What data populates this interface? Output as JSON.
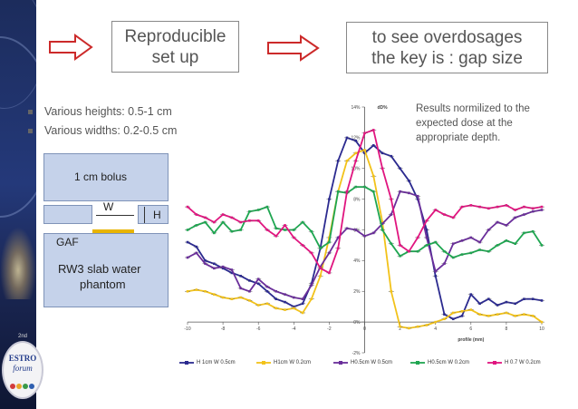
{
  "header": {
    "box1_line1": "Reproducible",
    "box1_line2": "set up",
    "box2_line1": "to see overdosages",
    "box2_line2": "the key is : gap size"
  },
  "bullets": [
    "Various heights: 0.5-1 cm",
    "Various widths: 0.2-0.5 cm"
  ],
  "note": {
    "line1": "Results normilized to the",
    "line2": "expected dose at the",
    "line3": "appropriate depth."
  },
  "setup": {
    "bolus_label": "1 cm bolus",
    "w_label": "W",
    "h_label": "H",
    "gaf_label": "GAF",
    "slab_line1": "RW3 slab water",
    "slab_line2": "phantom"
  },
  "logo": {
    "edition": "2nd",
    "line1": "ESTRO",
    "line2": "forum"
  },
  "colors": {
    "arrow": "#cc2a2a",
    "s1": "#2b2a8f",
    "s2": "#f2c21a",
    "s3": "#6a2e9a",
    "s4": "#1fa651",
    "s5": "#e0157f"
  },
  "chart_data": {
    "type": "line",
    "title": "dD%",
    "xlabel": "profile (mm)",
    "ylabel": "",
    "xlim": [
      -10,
      10
    ],
    "ylim": [
      -2,
      14
    ],
    "xticks": [
      "-10",
      "-8",
      "-6",
      "-4",
      "-2",
      "0",
      "2",
      "4",
      "6",
      "8",
      "10"
    ],
    "yticks": [
      "-2%",
      "0%",
      "2%",
      "4%",
      "6%",
      "8%",
      "10%",
      "12%",
      "14%"
    ],
    "grid": false,
    "legend_position": "bottom",
    "series": [
      {
        "name": "H 1cm   W 0.5cm",
        "color": "#2b2a8f",
        "x": [
          -10,
          -9.5,
          -9,
          -8.5,
          -8,
          -7.5,
          -7,
          -6.5,
          -6,
          -5.5,
          -5,
          -4.5,
          -4,
          -3.5,
          -3,
          -2.5,
          -2,
          -1.5,
          -1,
          -0.5,
          0,
          0.5,
          1,
          1.5,
          2,
          2.5,
          3,
          3.5,
          4,
          4.5,
          5,
          5.5,
          6,
          6.5,
          7,
          7.5,
          8,
          8.5,
          9,
          9.5,
          10
        ],
        "y": [
          5.2,
          4.9,
          4.0,
          3.8,
          3.5,
          3.2,
          3.0,
          2.7,
          2.5,
          2.0,
          1.5,
          1.3,
          1.0,
          1.2,
          2.5,
          4.8,
          8.0,
          10.5,
          12.0,
          11.8,
          11.0,
          11.5,
          11.0,
          10.8,
          10.0,
          9.2,
          8.0,
          6.0,
          3.0,
          0.5,
          0.2,
          0.4,
          1.8,
          1.2,
          1.5,
          1.1,
          1.3,
          1.2,
          1.5,
          1.5,
          1.4
        ]
      },
      {
        "name": "H1cm   W 0.2cm",
        "color": "#f2c21a",
        "x": [
          -10,
          -9.5,
          -9,
          -8.5,
          -8,
          -7.5,
          -7,
          -6.5,
          -6,
          -5.5,
          -5,
          -4.5,
          -4,
          -3.5,
          -3,
          -2.5,
          -2,
          -1.5,
          -1,
          -0.5,
          0,
          0.5,
          1,
          1.5,
          2,
          2.5,
          3,
          3.5,
          4,
          4.5,
          5,
          5.5,
          6,
          6.5,
          7,
          7.5,
          8,
          8.5,
          9,
          9.5,
          10
        ],
        "y": [
          2.0,
          2.1,
          2.0,
          1.8,
          1.6,
          1.5,
          1.6,
          1.4,
          1.1,
          1.2,
          0.9,
          0.8,
          0.9,
          0.6,
          1.5,
          3.0,
          5.5,
          8.5,
          10.5,
          11.0,
          11.2,
          9.5,
          6.5,
          2.0,
          -0.3,
          -0.4,
          -0.3,
          -0.2,
          0.0,
          0.2,
          0.6,
          0.7,
          0.8,
          0.5,
          0.4,
          0.5,
          0.6,
          0.4,
          0.5,
          0.4,
          0.0
        ]
      },
      {
        "name": "H0.5cm   W 0.5cm",
        "color": "#6a2e9a",
        "x": [
          -10,
          -9.5,
          -9,
          -8.5,
          -8,
          -7.5,
          -7,
          -6.5,
          -6,
          -5.5,
          -5,
          -4.5,
          -4,
          -3.5,
          -3,
          -2.5,
          -2,
          -1.5,
          -1,
          -0.5,
          0,
          0.5,
          1,
          1.5,
          2,
          2.5,
          3,
          3.5,
          4,
          4.5,
          5,
          5.5,
          6,
          6.5,
          7,
          7.5,
          8,
          8.5,
          9,
          9.5,
          10
        ],
        "y": [
          4.2,
          4.5,
          3.8,
          3.5,
          3.6,
          3.4,
          2.2,
          2.0,
          2.8,
          2.3,
          2.0,
          1.8,
          1.6,
          1.5,
          2.4,
          3.6,
          4.5,
          5.5,
          6.1,
          6.0,
          5.6,
          5.8,
          6.4,
          7.0,
          8.5,
          8.4,
          8.2,
          5.5,
          3.3,
          3.8,
          5.1,
          5.3,
          5.5,
          5.2,
          6.0,
          6.5,
          6.3,
          6.8,
          7.0,
          7.2,
          7.3
        ]
      },
      {
        "name": "H0.5cm   W 0.2cm",
        "color": "#1fa651",
        "x": [
          -10,
          -9.5,
          -9,
          -8.5,
          -8,
          -7.5,
          -7,
          -6.5,
          -6,
          -5.5,
          -5,
          -4.5,
          -4,
          -3.5,
          -3,
          -2.5,
          -2,
          -1.5,
          -1,
          -0.5,
          0,
          0.5,
          1,
          1.5,
          2,
          2.5,
          3,
          3.5,
          4,
          4.5,
          5,
          5.5,
          6,
          6.5,
          7,
          7.5,
          8,
          8.5,
          9,
          9.5,
          10
        ],
        "y": [
          6.0,
          6.3,
          6.5,
          5.8,
          6.5,
          5.9,
          6.0,
          7.2,
          7.3,
          7.5,
          6.1,
          6.0,
          6.0,
          6.5,
          5.9,
          4.8,
          5.2,
          8.5,
          8.4,
          8.8,
          8.8,
          8.5,
          6.0,
          5.1,
          4.3,
          4.6,
          4.6,
          5.0,
          5.2,
          4.6,
          4.2,
          4.4,
          4.5,
          4.7,
          4.6,
          5.0,
          5.3,
          5.1,
          5.8,
          5.9,
          5.0
        ]
      },
      {
        "name": "H 0.7   W 0.2cm",
        "color": "#e0157f",
        "x": [
          -10,
          -9.5,
          -9,
          -8.5,
          -8,
          -7.5,
          -7,
          -6.5,
          -6,
          -5.5,
          -5,
          -4.5,
          -4,
          -3.5,
          -3,
          -2.5,
          -2,
          -1.5,
          -1,
          -0.5,
          0,
          0.5,
          1,
          1.5,
          2,
          2.5,
          3,
          3.5,
          4,
          4.5,
          5,
          5.5,
          6,
          6.5,
          7,
          7.5,
          8,
          8.5,
          9,
          9.5,
          10
        ],
        "y": [
          7.5,
          7.0,
          6.8,
          6.5,
          7.0,
          6.8,
          6.5,
          6.6,
          6.6,
          6.0,
          5.6,
          6.3,
          5.5,
          5.0,
          4.5,
          3.5,
          3.2,
          4.8,
          8.5,
          10.5,
          12.3,
          12.5,
          10.0,
          8.0,
          5.0,
          4.6,
          5.5,
          6.6,
          7.3,
          7.0,
          6.8,
          7.5,
          7.6,
          7.5,
          7.4,
          7.5,
          7.6,
          7.3,
          7.5,
          7.4,
          7.5
        ]
      }
    ]
  }
}
